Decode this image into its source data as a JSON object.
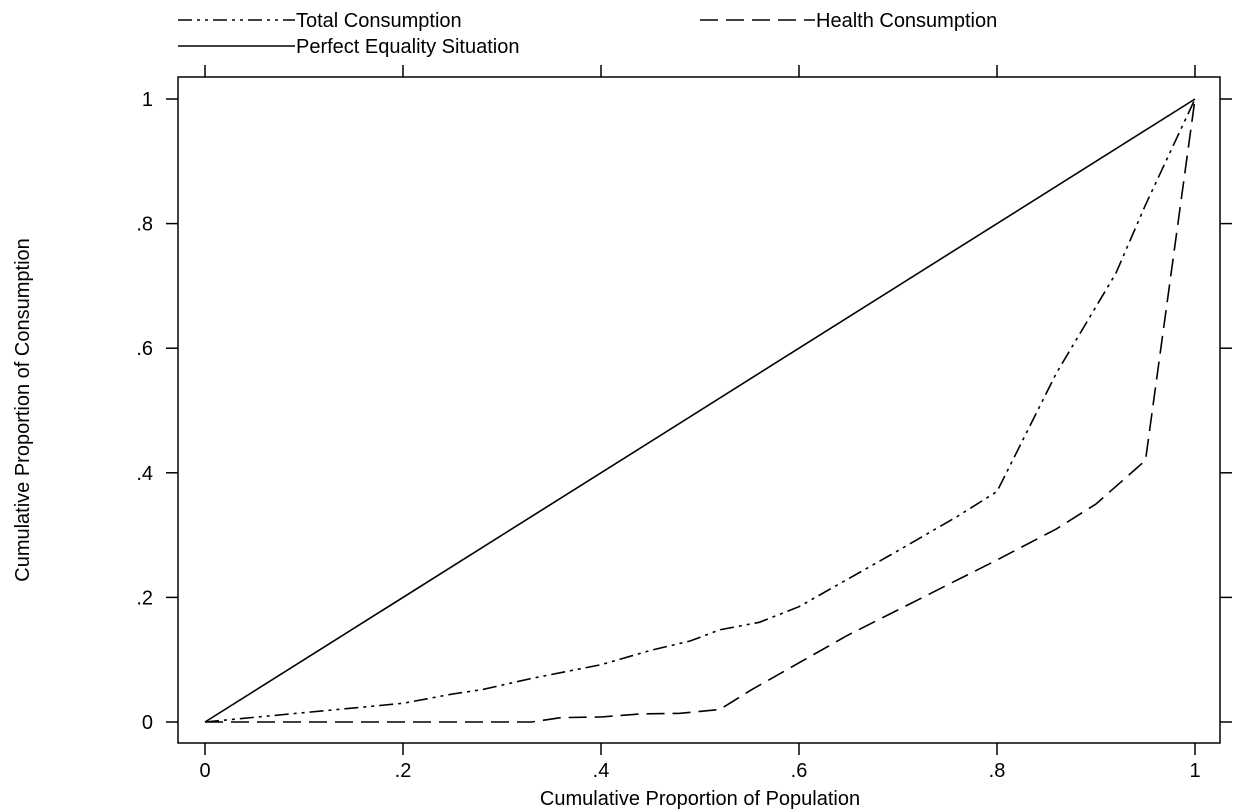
{
  "chart_data": {
    "type": "line",
    "title": "",
    "xlabel": "Cumulative Proportion of Population",
    "ylabel": "Cumulative Proportion of Consumption",
    "xlim": [
      0,
      1
    ],
    "ylim": [
      0,
      1
    ],
    "x_ticks": [
      {
        "value": 0,
        "label": "0"
      },
      {
        "value": 0.2,
        "label": ".2"
      },
      {
        "value": 0.4,
        "label": ".4"
      },
      {
        "value": 0.6,
        "label": ".6"
      },
      {
        "value": 0.8,
        "label": ".8"
      },
      {
        "value": 1,
        "label": "1"
      }
    ],
    "y_ticks": [
      {
        "value": 0,
        "label": "0"
      },
      {
        "value": 0.2,
        "label": ".2"
      },
      {
        "value": 0.4,
        "label": ".4"
      },
      {
        "value": 0.6,
        "label": ".6"
      },
      {
        "value": 0.8,
        "label": ".8"
      },
      {
        "value": 1,
        "label": "1"
      }
    ],
    "grid": false,
    "legend_position": "top",
    "series": [
      {
        "name": "Total Consumption",
        "line_style": "dash-dot",
        "color": "#000000",
        "points": [
          [
            0,
            0
          ],
          [
            0.08,
            0.012
          ],
          [
            0.12,
            0.018
          ],
          [
            0.2,
            0.03
          ],
          [
            0.25,
            0.045
          ],
          [
            0.28,
            0.052
          ],
          [
            0.33,
            0.07
          ],
          [
            0.4,
            0.092
          ],
          [
            0.45,
            0.115
          ],
          [
            0.49,
            0.13
          ],
          [
            0.52,
            0.148
          ],
          [
            0.56,
            0.16
          ],
          [
            0.6,
            0.185
          ],
          [
            0.65,
            0.23
          ],
          [
            0.7,
            0.275
          ],
          [
            0.76,
            0.33
          ],
          [
            0.8,
            0.37
          ],
          [
            0.86,
            0.56
          ],
          [
            0.92,
            0.72
          ],
          [
            0.95,
            0.83
          ],
          [
            1,
            1
          ]
        ]
      },
      {
        "name": "Health Consumption",
        "line_style": "dashed",
        "color": "#000000",
        "points": [
          [
            0,
            0
          ],
          [
            0.33,
            0
          ],
          [
            0.36,
            0.007
          ],
          [
            0.4,
            0.008
          ],
          [
            0.44,
            0.013
          ],
          [
            0.48,
            0.014
          ],
          [
            0.52,
            0.02
          ],
          [
            0.55,
            0.05
          ],
          [
            0.6,
            0.095
          ],
          [
            0.65,
            0.14
          ],
          [
            0.7,
            0.18
          ],
          [
            0.75,
            0.22
          ],
          [
            0.8,
            0.26
          ],
          [
            0.86,
            0.31
          ],
          [
            0.9,
            0.35
          ],
          [
            0.95,
            0.42
          ],
          [
            1,
            1
          ]
        ]
      },
      {
        "name": "Perfect Equality Situation",
        "line_style": "solid",
        "color": "#000000",
        "points": [
          [
            0,
            0
          ],
          [
            1,
            1
          ]
        ]
      }
    ]
  }
}
